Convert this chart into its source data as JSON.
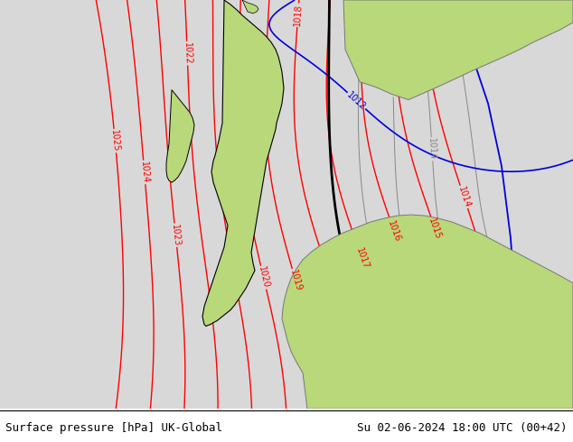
{
  "title_left": "Surface pressure [hPa] UK-Global",
  "title_right": "Su 02-06-2024 18:00 UTC (00+42)",
  "bg_color_land": "#b8d87a",
  "bg_color_sea": "#d8d8d8",
  "isobar_color_red": "#ff0000",
  "isobar_color_black": "#000000",
  "isobar_color_blue": "#0000dd",
  "isobar_color_gray": "#888888",
  "fig_width": 6.34,
  "fig_height": 4.9,
  "dpi": 100,
  "bottom_bar_color": "#ffffff",
  "bottom_text_color": "#000000"
}
